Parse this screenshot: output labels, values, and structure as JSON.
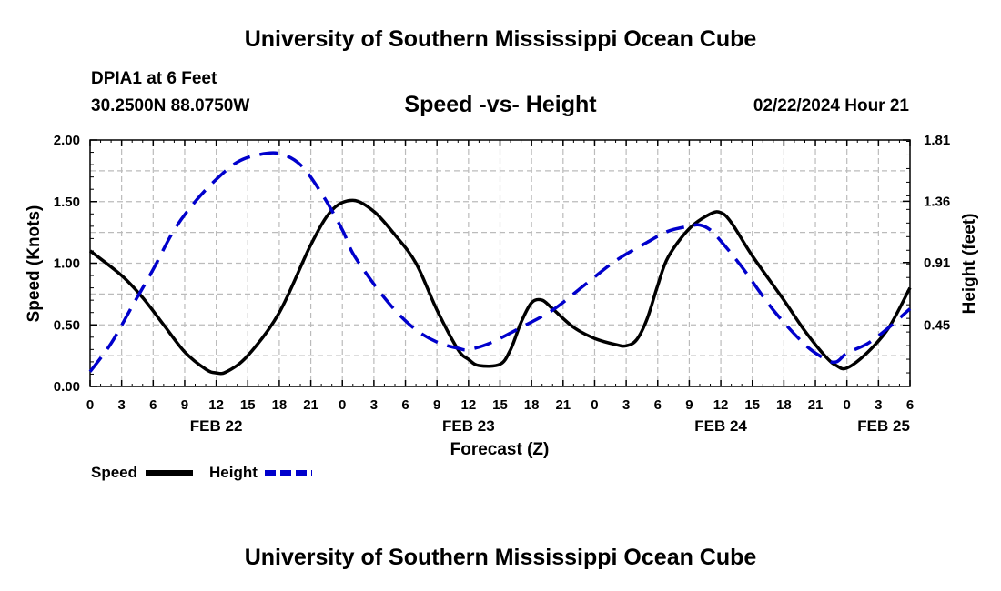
{
  "header": {
    "title": "University of Southern Mississippi Ocean Cube",
    "station": "DPIA1 at 6 Feet",
    "coordinates": "30.2500N  88.0750W",
    "datetime": "02/22/2024 Hour 21",
    "footer_title": "University of Southern Mississippi Ocean Cube"
  },
  "chart_data": {
    "type": "line",
    "title": "Speed -vs- Height",
    "xlabel": "Forecast (Z)",
    "ylabel": "Speed (Knots)",
    "y2label": "Height (feet)",
    "x_unit": "forecast hour (0 = FEB 22 00Z)",
    "xlim": [
      0,
      78
    ],
    "ylim": [
      0,
      2.0
    ],
    "y_ticks": [
      "0.00",
      "0.50",
      "1.00",
      "1.50",
      "2.00"
    ],
    "y2_ticks": [
      "0.45",
      "0.91",
      "1.36",
      "1.81"
    ],
    "y2_tick_values": [
      0.45,
      0.91,
      1.36,
      1.81
    ],
    "y2_mapping": {
      "speed_at_0": 0.0,
      "height_per_knot": 0.905
    },
    "x_ticks": [
      {
        "hour": 0,
        "label": "0"
      },
      {
        "hour": 3,
        "label": "3"
      },
      {
        "hour": 6,
        "label": "6"
      },
      {
        "hour": 9,
        "label": "9"
      },
      {
        "hour": 12,
        "label": "12"
      },
      {
        "hour": 15,
        "label": "15"
      },
      {
        "hour": 18,
        "label": "18"
      },
      {
        "hour": 21,
        "label": "21"
      },
      {
        "hour": 24,
        "label": "0"
      },
      {
        "hour": 27,
        "label": "3"
      },
      {
        "hour": 30,
        "label": "6"
      },
      {
        "hour": 33,
        "label": "9"
      },
      {
        "hour": 36,
        "label": "12"
      },
      {
        "hour": 39,
        "label": "15"
      },
      {
        "hour": 42,
        "label": "18"
      },
      {
        "hour": 45,
        "label": "21"
      },
      {
        "hour": 48,
        "label": "0"
      },
      {
        "hour": 51,
        "label": "3"
      },
      {
        "hour": 54,
        "label": "6"
      },
      {
        "hour": 57,
        "label": "9"
      },
      {
        "hour": 60,
        "label": "12"
      },
      {
        "hour": 63,
        "label": "15"
      },
      {
        "hour": 66,
        "label": "18"
      },
      {
        "hour": 69,
        "label": "21"
      },
      {
        "hour": 72,
        "label": "0"
      },
      {
        "hour": 75,
        "label": "3"
      },
      {
        "hour": 78,
        "label": "6"
      }
    ],
    "date_labels": [
      {
        "hour": 12,
        "label": "FEB 22"
      },
      {
        "hour": 36,
        "label": "FEB 23"
      },
      {
        "hour": 60,
        "label": "FEB 24"
      },
      {
        "hour": 75.5,
        "label": "FEB 25"
      }
    ],
    "series": [
      {
        "name": "Speed",
        "color": "#000000",
        "dash": "solid",
        "axis": "left",
        "points": [
          [
            0,
            1.1
          ],
          [
            3,
            0.9
          ],
          [
            5,
            0.72
          ],
          [
            7,
            0.5
          ],
          [
            9,
            0.28
          ],
          [
            11,
            0.14
          ],
          [
            12,
            0.11
          ],
          [
            13,
            0.12
          ],
          [
            15,
            0.25
          ],
          [
            18,
            0.6
          ],
          [
            21,
            1.15
          ],
          [
            23,
            1.43
          ],
          [
            25,
            1.51
          ],
          [
            27,
            1.42
          ],
          [
            29,
            1.23
          ],
          [
            31,
            1.0
          ],
          [
            33,
            0.62
          ],
          [
            35,
            0.3
          ],
          [
            36,
            0.22
          ],
          [
            37,
            0.17
          ],
          [
            39,
            0.18
          ],
          [
            40,
            0.3
          ],
          [
            41,
            0.52
          ],
          [
            42,
            0.68
          ],
          [
            43,
            0.7
          ],
          [
            44,
            0.63
          ],
          [
            46,
            0.48
          ],
          [
            48,
            0.39
          ],
          [
            50,
            0.34
          ],
          [
            51,
            0.33
          ],
          [
            52,
            0.38
          ],
          [
            53,
            0.55
          ],
          [
            54,
            0.82
          ],
          [
            55,
            1.05
          ],
          [
            57,
            1.28
          ],
          [
            59,
            1.4
          ],
          [
            60,
            1.41
          ],
          [
            61,
            1.33
          ],
          [
            63,
            1.06
          ],
          [
            66,
            0.7
          ],
          [
            68,
            0.45
          ],
          [
            70,
            0.24
          ],
          [
            71,
            0.17
          ],
          [
            72,
            0.15
          ],
          [
            74,
            0.28
          ],
          [
            76,
            0.48
          ],
          [
            78,
            0.8
          ]
        ]
      },
      {
        "name": "Height",
        "color": "#0000cc",
        "dash": "dashed",
        "axis": "left",
        "points": [
          [
            0,
            0.12
          ],
          [
            2,
            0.35
          ],
          [
            4,
            0.65
          ],
          [
            6,
            0.95
          ],
          [
            8,
            1.27
          ],
          [
            10,
            1.5
          ],
          [
            12,
            1.68
          ],
          [
            14,
            1.82
          ],
          [
            16,
            1.88
          ],
          [
            18,
            1.89
          ],
          [
            20,
            1.8
          ],
          [
            22,
            1.57
          ],
          [
            24,
            1.27
          ],
          [
            25,
            1.08
          ],
          [
            27,
            0.83
          ],
          [
            29,
            0.62
          ],
          [
            31,
            0.46
          ],
          [
            33,
            0.36
          ],
          [
            35,
            0.31
          ],
          [
            36,
            0.3
          ],
          [
            38,
            0.35
          ],
          [
            41,
            0.48
          ],
          [
            44,
            0.62
          ],
          [
            47,
            0.82
          ],
          [
            50,
            1.02
          ],
          [
            53,
            1.17
          ],
          [
            55,
            1.26
          ],
          [
            57,
            1.3
          ],
          [
            58,
            1.31
          ],
          [
            59,
            1.27
          ],
          [
            60,
            1.18
          ],
          [
            62,
            0.97
          ],
          [
            65,
            0.62
          ],
          [
            68,
            0.34
          ],
          [
            70,
            0.22
          ],
          [
            71,
            0.2
          ],
          [
            72,
            0.27
          ],
          [
            74,
            0.35
          ],
          [
            76,
            0.48
          ],
          [
            78,
            0.63
          ]
        ]
      }
    ],
    "legend": [
      "Speed",
      "Height"
    ],
    "legend_position": "bottom-left",
    "grid": true
  }
}
